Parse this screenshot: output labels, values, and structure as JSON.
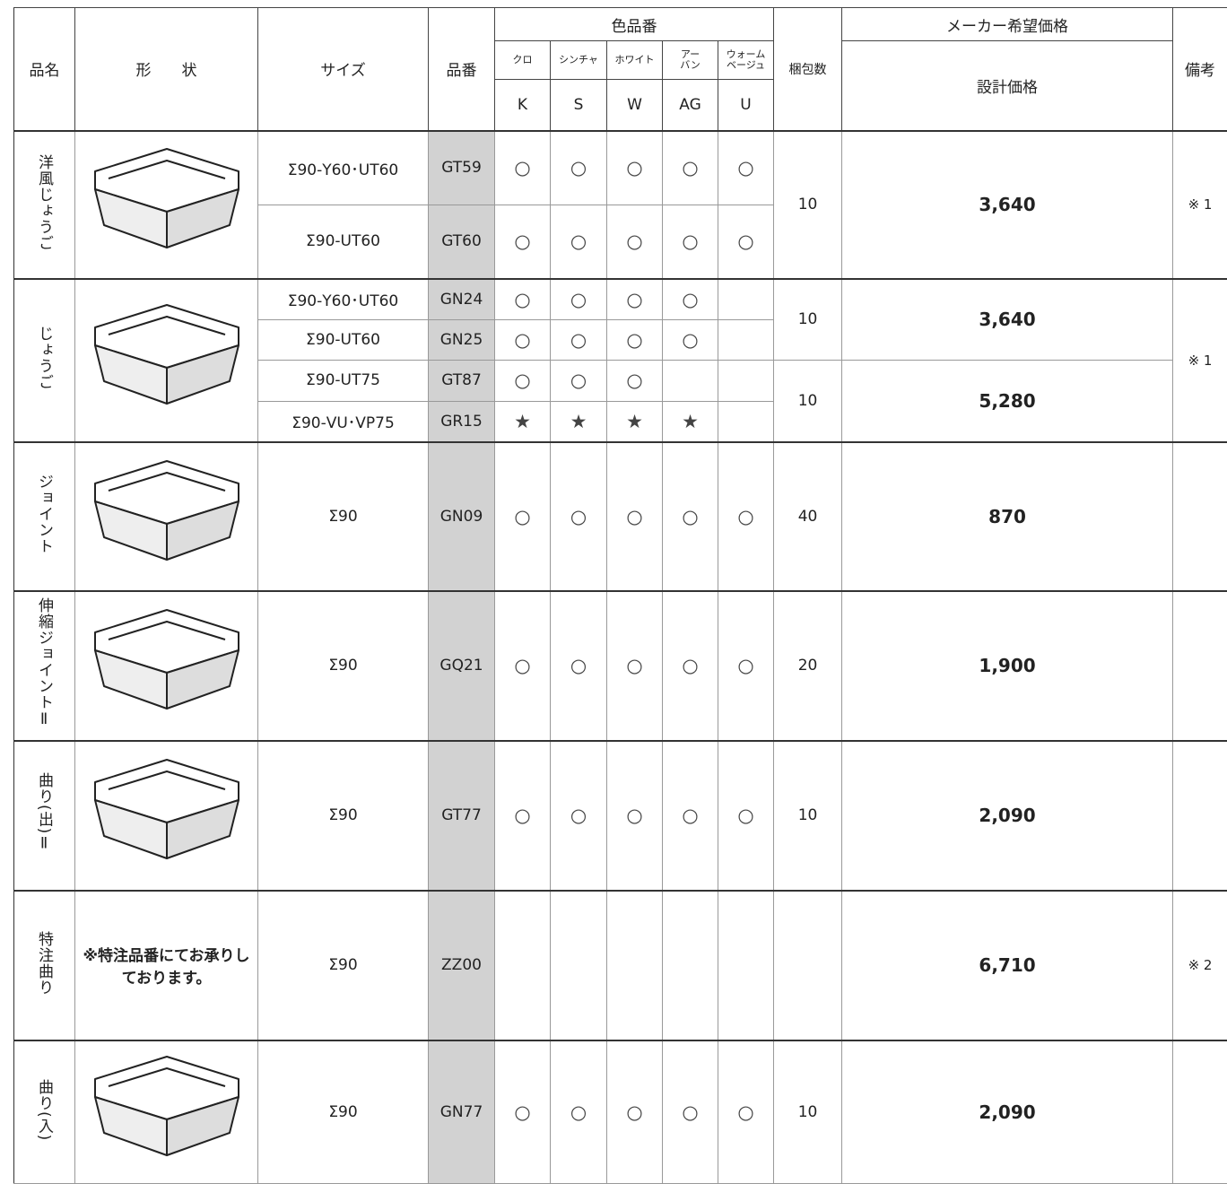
{
  "header": {
    "product_name": "品名",
    "shape": "形　　状",
    "size": "サイズ",
    "code": "品番",
    "color_code": "色品番",
    "colors": [
      {
        "name": "クロ",
        "code": "K"
      },
      {
        "name": "シンチャ",
        "code": "S"
      },
      {
        "name": "ホワイト",
        "code": "W"
      },
      {
        "name": "アー\nバン",
        "code": "AG"
      },
      {
        "name": "ウォーム\nベージュ",
        "code": "U"
      }
    ],
    "pack": "梱包数",
    "maker_price": "メーカー希望価格",
    "design_price": "設計価格",
    "note": "備考"
  },
  "rows": [
    {
      "name": "洋風じょうご",
      "note": "※ 1",
      "groups": [
        {
          "pack": 10,
          "price": "3,640",
          "items": [
            {
              "size": "Σ90-Y60･UT60",
              "code": "GT59",
              "marks": [
                "○",
                "○",
                "○",
                "○",
                "○"
              ]
            },
            {
              "size": "Σ90-UT60",
              "code": "GT60",
              "marks": [
                "○",
                "○",
                "○",
                "○",
                "○"
              ]
            }
          ]
        }
      ]
    },
    {
      "name": "じょうご",
      "note": "※ 1",
      "groups": [
        {
          "pack": 10,
          "price": "3,640",
          "items": [
            {
              "size": "Σ90-Y60･UT60",
              "code": "GN24",
              "marks": [
                "○",
                "○",
                "○",
                "○",
                null
              ]
            },
            {
              "size": "Σ90-UT60",
              "code": "GN25",
              "marks": [
                "○",
                "○",
                "○",
                "○",
                null
              ]
            }
          ]
        },
        {
          "pack": 10,
          "price": "5,280",
          "items": [
            {
              "size": "Σ90-UT75",
              "code": "GT87",
              "marks": [
                "○",
                "○",
                "○",
                null,
                null
              ]
            },
            {
              "size": "Σ90-VU･VP75",
              "code": "GR15",
              "marks": [
                "★",
                "★",
                "★",
                "★",
                null
              ]
            }
          ]
        }
      ]
    },
    {
      "name": "ジョイント",
      "groups": [
        {
          "pack": 40,
          "price": "870",
          "items": [
            {
              "size": "Σ90",
              "code": "GN09",
              "marks": [
                "○",
                "○",
                "○",
                "○",
                "○"
              ]
            }
          ]
        }
      ]
    },
    {
      "name": "伸縮ジョイントⅡ",
      "groups": [
        {
          "pack": 20,
          "price": "1,900",
          "items": [
            {
              "size": "Σ90",
              "code": "GQ21",
              "marks": [
                "○",
                "○",
                "○",
                "○",
                "○"
              ]
            }
          ]
        }
      ]
    },
    {
      "name": "曲り(出)Ⅱ",
      "groups": [
        {
          "pack": 10,
          "price": "2,090",
          "items": [
            {
              "size": "Σ90",
              "code": "GT77",
              "marks": [
                "○",
                "○",
                "○",
                "○",
                "○"
              ]
            }
          ]
        }
      ]
    },
    {
      "name": "特注曲り",
      "shape_text": "※特注品番にてお承りしております。",
      "note": "※ 2",
      "groups": [
        {
          "price": "6,710",
          "items": [
            {
              "size": "Σ90",
              "code": "ZZ00"
            }
          ]
        }
      ]
    },
    {
      "name": "曲り(入)",
      "groups": [
        {
          "pack": 10,
          "price": "2,090",
          "items": [
            {
              "size": "Σ90",
              "code": "GN77",
              "marks": [
                "○",
                "○",
                "○",
                "○",
                "○"
              ]
            }
          ]
        }
      ]
    }
  ]
}
